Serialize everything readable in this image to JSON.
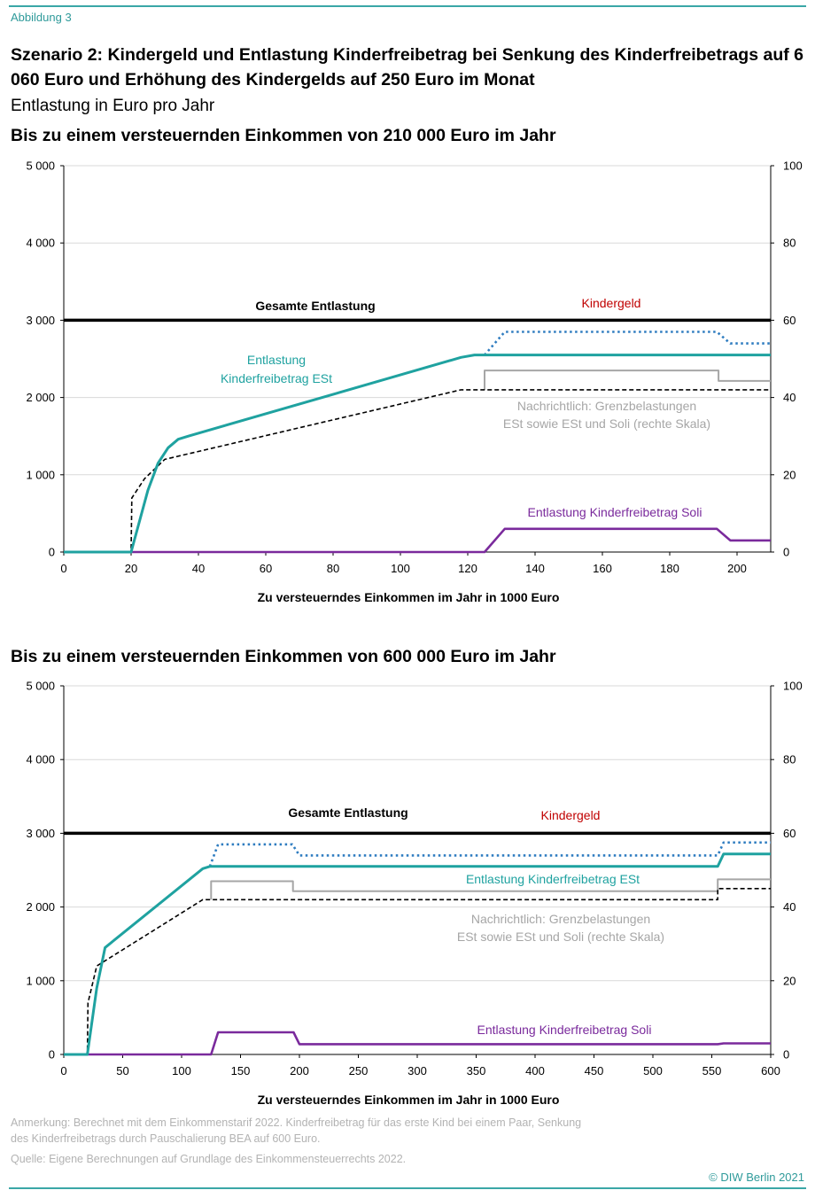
{
  "header": {
    "figure_label": "Abbildung 3",
    "title": "Szenario 2: Kindergeld und Entlastung Kinderfreibetrag bei Senkung des Kinderfreibetrags auf 6 060 Euro und Erhöhung des Kindergelds auf 250 Euro im Monat",
    "subtitle": "Entlastung in Euro pro Jahr"
  },
  "footer": {
    "note_line1": "Anmerkung: Berechnet mit dem Einkommenstarif 2022. Kinderfreibetrag für das erste Kind bei einem Paar, Senkung",
    "note_line2": "des Kinderfreibetrags durch Pauschalierung BEA auf 600 Euro.",
    "source": "Quelle: Eigene Berechnungen auf Grundlage des Einkommensteuerrechts 2022.",
    "copyright": "© DIW Berlin 2021"
  },
  "colors": {
    "gesamt": "#000000",
    "est": "#1fa2a0",
    "soli": "#7a2a9c",
    "marginal_total": "#2e7cc0",
    "marginal_gray": "#a6a6a6",
    "marginal_est": "#000000",
    "kindergeld_label": "#c00000",
    "grid": "#d9d9d9"
  },
  "chart_data": [
    {
      "type": "line",
      "heading": "Bis zu einem versteuernden Einkommen von 210 000 Euro im Jahr",
      "xlabel": "Zu versteuerndes Einkommen im Jahr in 1000 Euro",
      "xlim": [
        0,
        210
      ],
      "ylim_left": [
        0,
        5000
      ],
      "ylim_right": [
        0,
        100
      ],
      "x_ticks": [
        0,
        20,
        40,
        60,
        80,
        100,
        120,
        140,
        160,
        180,
        200
      ],
      "x_tick_labels": [
        "0",
        "20",
        "40",
        "60",
        "80",
        "100",
        "120",
        "140",
        "160",
        "180",
        "200"
      ],
      "y_ticks_left": [
        0,
        1000,
        2000,
        3000,
        4000,
        5000
      ],
      "y_tick_labels_left": [
        "0",
        "1 000",
        "2 000",
        "3 000",
        "4 000",
        "5 000"
      ],
      "y_ticks_right": [
        0,
        20,
        40,
        60,
        80,
        100
      ],
      "y_tick_labels_right": [
        "0",
        "20",
        "40",
        "60",
        "80",
        "100"
      ],
      "annotations": {
        "gesamt": "Gesamte Entlastung",
        "kindergeld": "Kindergeld",
        "est_line1": "Entlastung",
        "est_line2": "Kinderfreibetrag ESt",
        "marg_line1": "Nachrichtlich: Grenzbelastungen",
        "marg_line2": "ESt sowie ESt und Soli (rechte Skala)",
        "soli": "Entlastung Kinderfreibetrag Soli"
      },
      "series": [
        {
          "name": "Gesamte Entlastung",
          "axis": "left",
          "style": "gesamt",
          "x": [
            0,
            210
          ],
          "y": [
            3000,
            3000
          ]
        },
        {
          "name": "Entlastung Kinderfreibetrag ESt",
          "axis": "left",
          "style": "est",
          "x": [
            0,
            20,
            25,
            28,
            31,
            34,
            37,
            118,
            122,
            210
          ],
          "y": [
            0,
            0,
            800,
            1150,
            1350,
            1460,
            1500,
            2520,
            2550,
            2550
          ]
        },
        {
          "name": "Entlastung Kinderfreibetrag Soli",
          "axis": "left",
          "style": "soli",
          "x": [
            0,
            125,
            131,
            194,
            198,
            210
          ],
          "y": [
            0,
            0,
            300,
            300,
            150,
            150
          ]
        },
        {
          "name": "Grenzbelastung ESt und Soli",
          "axis": "right",
          "style": "marginal_total",
          "x": [
            125,
            131,
            194,
            198,
            210
          ],
          "y": [
            51,
            57,
            57,
            54,
            54
          ]
        },
        {
          "name": "Grenzbelastung ESt und Soli (Stufe)",
          "axis": "right",
          "style": "marginal_gray",
          "x": [
            125,
            125,
            194.5,
            194.5,
            210
          ],
          "y": [
            42,
            47,
            47,
            44.3,
            44.3
          ]
        },
        {
          "name": "Grenzbelastung ESt",
          "axis": "right",
          "style": "marginal_est",
          "x": [
            0,
            20,
            20.2,
            24,
            30,
            118,
            210
          ],
          "y": [
            0,
            0,
            14,
            19,
            24,
            42,
            42
          ]
        }
      ]
    },
    {
      "type": "line",
      "heading": "Bis zu einem versteuernden Einkommen von 600 000 Euro im Jahr",
      "xlabel": "Zu versteuerndes Einkommen im Jahr in 1000 Euro",
      "xlim": [
        0,
        600
      ],
      "ylim_left": [
        0,
        5000
      ],
      "ylim_right": [
        0,
        100
      ],
      "x_ticks": [
        0,
        50,
        100,
        150,
        200,
        250,
        300,
        350,
        400,
        450,
        500,
        550,
        600
      ],
      "x_tick_labels": [
        "0",
        "50",
        "100",
        "150",
        "200",
        "250",
        "300",
        "350",
        "400",
        "450",
        "500",
        "550",
        "600"
      ],
      "y_ticks_left": [
        0,
        1000,
        2000,
        3000,
        4000,
        5000
      ],
      "y_tick_labels_left": [
        "0",
        "1 000",
        "2 000",
        "3 000",
        "4 000",
        "5 000"
      ],
      "y_ticks_right": [
        0,
        20,
        40,
        60,
        80,
        100
      ],
      "y_tick_labels_right": [
        "0",
        "20",
        "40",
        "60",
        "80",
        "100"
      ],
      "annotations": {
        "gesamt": "Gesamte Entlastung",
        "kindergeld": "Kindergeld",
        "est": "Entlastung Kinderfreibetrag ESt",
        "marg_line1": "Nachrichtlich: Grenzbelastungen",
        "marg_line2": "ESt sowie ESt und Soli (rechte Skala)",
        "soli": "Entlastung Kinderfreibetrag Soli"
      },
      "series": [
        {
          "name": "Gesamte Entlastung",
          "axis": "left",
          "style": "gesamt",
          "x": [
            0,
            600
          ],
          "y": [
            3000,
            3000
          ]
        },
        {
          "name": "Entlastung Kinderfreibetrag ESt",
          "axis": "left",
          "style": "est",
          "x": [
            0,
            20,
            28,
            35,
            118,
            124,
            555,
            560,
            600
          ],
          "y": [
            0,
            0,
            900,
            1450,
            2520,
            2550,
            2550,
            2720,
            2720
          ]
        },
        {
          "name": "Entlastung Kinderfreibetrag Soli",
          "axis": "left",
          "style": "soli",
          "x": [
            0,
            125,
            131,
            195,
            200,
            555,
            560,
            600
          ],
          "y": [
            0,
            0,
            300,
            300,
            140,
            140,
            150,
            150
          ]
        },
        {
          "name": "Grenzbelastung ESt und Soli",
          "axis": "right",
          "style": "marginal_total",
          "x": [
            124,
            131,
            194,
            200,
            555,
            560,
            600
          ],
          "y": [
            51,
            57,
            57,
            54,
            54,
            57.5,
            57.5
          ]
        },
        {
          "name": "Grenzbelastung ESt und Soli (Stufe)",
          "axis": "right",
          "style": "marginal_gray",
          "x": [
            125,
            125,
            194.5,
            194.5,
            555,
            555,
            600
          ],
          "y": [
            42,
            47,
            47,
            44.3,
            44.3,
            47.5,
            47.5
          ]
        },
        {
          "name": "Grenzbelastung ESt",
          "axis": "right",
          "style": "marginal_est",
          "x": [
            0,
            20,
            20.5,
            28,
            118,
            555,
            555,
            600
          ],
          "y": [
            0,
            0,
            14,
            24,
            42,
            42,
            45,
            45
          ]
        }
      ]
    }
  ]
}
